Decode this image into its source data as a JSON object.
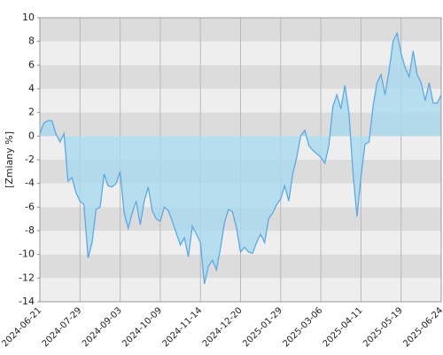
{
  "chart_data": {
    "type": "area",
    "ylabel": "[Zmiany %]",
    "categories": [
      "2024-06-21",
      null,
      null,
      null,
      null,
      null,
      null,
      null,
      null,
      null,
      "2024-07-29",
      null,
      null,
      null,
      null,
      null,
      null,
      null,
      null,
      null,
      "2024-09-03",
      null,
      null,
      null,
      null,
      null,
      null,
      null,
      null,
      null,
      "2024-10-09",
      null,
      null,
      null,
      null,
      null,
      null,
      null,
      null,
      null,
      "2024-11-14",
      null,
      null,
      null,
      null,
      null,
      null,
      null,
      null,
      null,
      "2024-12-20",
      null,
      null,
      null,
      null,
      null,
      null,
      null,
      null,
      null,
      "2025-01-29",
      null,
      null,
      null,
      null,
      null,
      null,
      null,
      null,
      null,
      "2025-03-06",
      null,
      null,
      null,
      null,
      null,
      null,
      null,
      null,
      null,
      "2025-04-11",
      null,
      null,
      null,
      null,
      null,
      null,
      null,
      null,
      null,
      "2025-05-19",
      null,
      null,
      null,
      null,
      null,
      null,
      null,
      null,
      null,
      "2025-06-24"
    ],
    "values": [
      0.2,
      1.1,
      1.3,
      1.3,
      0.2,
      -0.5,
      0.2,
      -3.8,
      -3.5,
      -4.8,
      -5.5,
      -5.8,
      -10.3,
      -9,
      -6.2,
      -6,
      -3.2,
      -4.2,
      -4.3,
      -4,
      -3,
      -6.5,
      -7.8,
      -6.5,
      -5.5,
      -7.5,
      -5.5,
      -4.3,
      -6.3,
      -7,
      -7.2,
      -6,
      -6.3,
      -7.2,
      -8.2,
      -9.2,
      -8.6,
      -10.2,
      -7.6,
      -8.3,
      -9,
      -12.5,
      -11,
      -10.5,
      -11.3,
      -9.5,
      -7.3,
      -6.2,
      -6.4,
      -7.8,
      -9.8,
      -9.4,
      -9.8,
      -9.9,
      -9,
      -8.3,
      -9,
      -7,
      -6.5,
      -5.8,
      -5.3,
      -4.2,
      -5.5,
      -3.2,
      -1.8,
      0,
      0.5,
      -0.8,
      -1.2,
      -1.5,
      -1.8,
      -2.3,
      -0.8,
      2.5,
      3.5,
      2.3,
      4.3,
      2,
      -3,
      -6.8,
      -3.5,
      -0.7,
      -0.5,
      2.5,
      4.5,
      5.2,
      3.5,
      5.5,
      8,
      8.7,
      7,
      5.8,
      5,
      7.2,
      5.2,
      4.5,
      3,
      4.5,
      2.8,
      2.8,
      3.5
    ],
    "color": "#5aaae6",
    "fill_color": "#a9d9ee",
    "ylim": [
      -14,
      10
    ],
    "yticks": [
      -14,
      -12,
      -10,
      -8,
      -6,
      -4,
      -2,
      0,
      2,
      4,
      6,
      8,
      10
    ],
    "grid": true
  }
}
